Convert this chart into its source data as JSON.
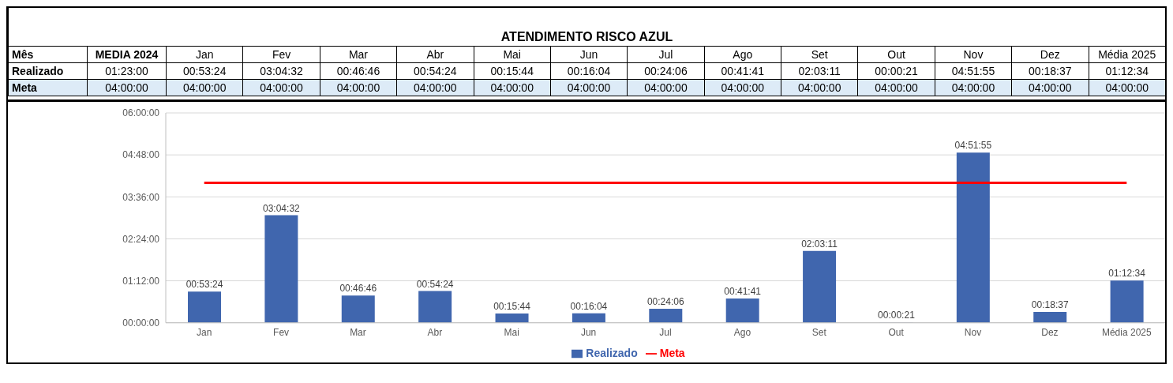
{
  "chart_data": {
    "type": "bar",
    "title": "ATENDIMENTO RISCO AZUL",
    "categories": [
      "Jan",
      "Fev",
      "Mar",
      "Abr",
      "Mai",
      "Jun",
      "Jul",
      "Ago",
      "Set",
      "Out",
      "Nov",
      "Dez",
      "Média 2025"
    ],
    "series": [
      {
        "name": "Realizado",
        "color": "#4066ae",
        "values": [
          0.89,
          3.0756,
          0.7794,
          0.9067,
          0.2622,
          0.2678,
          0.4017,
          0.6947,
          2.0531,
          0.0058,
          4.8653,
          0.3103,
          1.2094
        ],
        "value_labels": [
          "00:53:24",
          "03:04:32",
          "00:46:46",
          "00:54:24",
          "00:15:44",
          "00:16:04",
          "00:24:06",
          "00:41:41",
          "02:03:11",
          "00:00:21",
          "04:51:55",
          "00:18:37",
          "01:12:34"
        ]
      },
      {
        "name": "Meta",
        "type": "line",
        "color": "#ff0000",
        "values": [
          4,
          4,
          4,
          4,
          4,
          4,
          4,
          4,
          4,
          4,
          4,
          4,
          4
        ],
        "value_labels": [
          "04:00:00",
          "04:00:00",
          "04:00:00",
          "04:00:00",
          "04:00:00",
          "04:00:00",
          "04:00:00",
          "04:00:00",
          "04:00:00",
          "04:00:00",
          "04:00:00",
          "04:00:00",
          "04:00:00"
        ]
      }
    ],
    "annotations": [
      "Mês",
      "MEDIA 2024",
      "01:23:00",
      "04:00:00"
    ],
    "ylim": [
      0,
      6
    ],
    "yticks": [
      {
        "value": 0,
        "label": "00:00:00"
      },
      {
        "value": 1.2,
        "label": "01:12:00"
      },
      {
        "value": 2.4,
        "label": "02:24:00"
      },
      {
        "value": 3.6,
        "label": "03:36:00"
      },
      {
        "value": 4.8,
        "label": "04:48:00"
      },
      {
        "value": 6,
        "label": "06:00:00"
      }
    ],
    "grid": "y",
    "legend": "bottom",
    "marker": "none",
    "line_style": "solid"
  }
}
